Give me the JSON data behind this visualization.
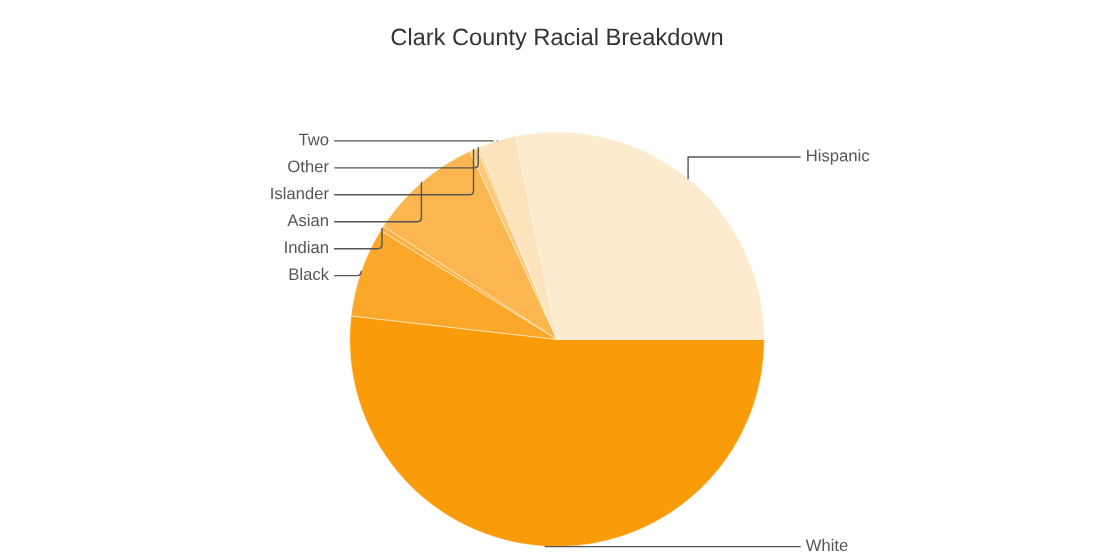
{
  "chart_data": {
    "type": "pie",
    "title": "Clark County Racial Breakdown",
    "categories": [
      "White",
      "Black",
      "Indian",
      "Asian",
      "Islander",
      "Other",
      "Two",
      "Hispanic"
    ],
    "values": [
      51.8,
      7.0,
      0.4,
      8.9,
      0.6,
      0.2,
      2.9,
      28.2
    ],
    "colors": [
      "#fa9b0a",
      "#fba72a",
      "#fbb043",
      "#fbb64f",
      "#fcc879",
      "#fcd498",
      "#fde3bc",
      "#fdebd0"
    ]
  }
}
